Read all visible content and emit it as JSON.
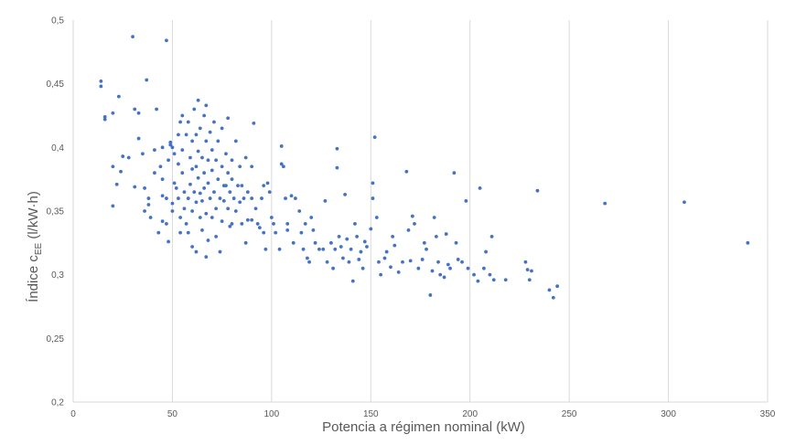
{
  "chart_data": {
    "type": "scatter",
    "xlabel": "Potencia a régimen nominal (kW)",
    "ylabel_main": "Índice c",
    "ylabel_sub": "EE",
    "ylabel_unit": " (l/kW·h)",
    "xlim": [
      0,
      350
    ],
    "ylim": [
      0.2,
      0.5
    ],
    "x_ticks": [
      0,
      50,
      100,
      150,
      200,
      250,
      300,
      350
    ],
    "y_ticks": [
      0.2,
      0.25,
      0.3,
      0.35,
      0.4,
      0.45,
      0.5
    ],
    "x_tick_labels": [
      "0",
      "50",
      "100",
      "150",
      "200",
      "250",
      "300",
      "350"
    ],
    "y_tick_labels": [
      "0,2",
      "0,25",
      "0,3",
      "0,35",
      "0,4",
      "0,45",
      "0,5"
    ],
    "grid": "vertical",
    "legend": "none",
    "marker_color": "#4472c4",
    "points": [
      [
        14,
        0.452
      ],
      [
        14,
        0.448
      ],
      [
        16,
        0.424
      ],
      [
        16,
        0.422
      ],
      [
        20,
        0.427
      ],
      [
        20,
        0.385
      ],
      [
        20,
        0.354
      ],
      [
        23,
        0.44
      ],
      [
        22,
        0.371
      ],
      [
        24,
        0.381
      ],
      [
        25,
        0.393
      ],
      [
        28,
        0.392
      ],
      [
        30,
        0.487
      ],
      [
        31,
        0.43
      ],
      [
        31,
        0.369
      ],
      [
        33,
        0.407
      ],
      [
        33,
        0.427
      ],
      [
        35,
        0.395
      ],
      [
        36,
        0.368
      ],
      [
        37,
        0.453
      ],
      [
        36,
        0.35
      ],
      [
        38,
        0.36
      ],
      [
        38,
        0.355
      ],
      [
        39,
        0.345
      ],
      [
        41,
        0.38
      ],
      [
        41,
        0.398
      ],
      [
        42,
        0.43
      ],
      [
        43,
        0.333
      ],
      [
        44,
        0.385
      ],
      [
        45,
        0.375
      ],
      [
        45,
        0.362
      ],
      [
        45,
        0.342
      ],
      [
        45,
        0.4
      ],
      [
        47,
        0.484
      ],
      [
        47,
        0.34
      ],
      [
        47,
        0.36
      ],
      [
        48,
        0.326
      ],
      [
        48,
        0.39
      ],
      [
        49,
        0.404
      ],
      [
        49,
        0.402
      ],
      [
        50,
        0.4
      ],
      [
        50,
        0.356
      ],
      [
        50,
        0.35
      ],
      [
        51,
        0.395
      ],
      [
        51,
        0.372
      ],
      [
        52,
        0.368
      ],
      [
        53,
        0.41
      ],
      [
        53,
        0.387
      ],
      [
        53,
        0.36
      ],
      [
        54,
        0.42
      ],
      [
        54,
        0.345
      ],
      [
        54,
        0.333
      ],
      [
        55,
        0.425
      ],
      [
        55,
        0.398
      ],
      [
        55,
        0.38
      ],
      [
        56,
        0.365
      ],
      [
        56,
        0.352
      ],
      [
        57,
        0.41
      ],
      [
        57,
        0.34
      ],
      [
        58,
        0.42
      ],
      [
        58,
        0.36
      ],
      [
        58,
        0.333
      ],
      [
        59,
        0.392
      ],
      [
        59,
        0.371
      ],
      [
        60,
        0.405
      ],
      [
        60,
        0.383
      ],
      [
        60,
        0.35
      ],
      [
        60,
        0.322
      ],
      [
        61,
        0.43
      ],
      [
        61,
        0.365
      ],
      [
        62,
        0.41
      ],
      [
        62,
        0.385
      ],
      [
        62,
        0.357
      ],
      [
        62,
        0.318
      ],
      [
        63,
        0.437
      ],
      [
        63,
        0.397
      ],
      [
        63,
        0.376
      ],
      [
        64,
        0.415
      ],
      [
        64,
        0.364
      ],
      [
        64,
        0.345
      ],
      [
        65,
        0.392
      ],
      [
        65,
        0.358
      ],
      [
        65,
        0.335
      ],
      [
        66,
        0.425
      ],
      [
        66,
        0.38
      ],
      [
        66,
        0.368
      ],
      [
        67,
        0.433
      ],
      [
        67,
        0.405
      ],
      [
        67,
        0.348
      ],
      [
        67,
        0.314
      ],
      [
        68,
        0.39
      ],
      [
        68,
        0.372
      ],
      [
        68,
        0.327
      ],
      [
        69,
        0.412
      ],
      [
        69,
        0.36
      ],
      [
        70,
        0.398
      ],
      [
        70,
        0.382
      ],
      [
        70,
        0.345
      ],
      [
        71,
        0.42
      ],
      [
        71,
        0.365
      ],
      [
        72,
        0.39
      ],
      [
        72,
        0.352
      ],
      [
        72,
        0.33
      ],
      [
        73,
        0.375
      ],
      [
        73,
        0.405
      ],
      [
        74,
        0.36
      ],
      [
        74,
        0.318
      ],
      [
        75,
        0.415
      ],
      [
        75,
        0.385
      ],
      [
        75,
        0.342
      ],
      [
        76,
        0.37
      ],
      [
        76,
        0.358
      ],
      [
        77,
        0.395
      ],
      [
        77,
        0.37
      ],
      [
        78,
        0.423
      ],
      [
        78,
        0.38
      ],
      [
        78,
        0.352
      ],
      [
        79,
        0.365
      ],
      [
        79,
        0.338
      ],
      [
        80,
        0.39
      ],
      [
        80,
        0.375
      ],
      [
        80,
        0.34
      ],
      [
        81,
        0.36
      ],
      [
        82,
        0.405
      ],
      [
        82,
        0.35
      ],
      [
        83,
        0.37
      ],
      [
        84,
        0.385
      ],
      [
        84,
        0.357
      ],
      [
        85,
        0.37
      ],
      [
        85,
        0.34
      ],
      [
        86,
        0.36
      ],
      [
        87,
        0.392
      ],
      [
        87,
        0.325
      ],
      [
        88,
        0.365
      ],
      [
        88,
        0.343
      ],
      [
        90,
        0.385
      ],
      [
        90,
        0.36
      ],
      [
        90,
        0.343
      ],
      [
        91,
        0.419
      ],
      [
        92,
        0.352
      ],
      [
        93,
        0.34
      ],
      [
        94,
        0.337
      ],
      [
        95,
        0.36
      ],
      [
        96,
        0.37
      ],
      [
        96,
        0.333
      ],
      [
        97,
        0.32
      ],
      [
        98,
        0.372
      ],
      [
        99,
        0.365
      ],
      [
        100,
        0.345
      ],
      [
        101,
        0.34
      ],
      [
        102,
        0.333
      ],
      [
        104,
        0.32
      ],
      [
        105,
        0.401
      ],
      [
        105,
        0.387
      ],
      [
        106,
        0.385
      ],
      [
        107,
        0.36
      ],
      [
        108,
        0.34
      ],
      [
        108,
        0.335
      ],
      [
        110,
        0.362
      ],
      [
        111,
        0.325
      ],
      [
        112,
        0.36
      ],
      [
        114,
        0.35
      ],
      [
        115,
        0.333
      ],
      [
        116,
        0.32
      ],
      [
        117,
        0.34
      ],
      [
        118,
        0.313
      ],
      [
        119,
        0.31
      ],
      [
        120,
        0.345
      ],
      [
        121,
        0.335
      ],
      [
        122,
        0.325
      ],
      [
        124,
        0.32
      ],
      [
        126,
        0.32
      ],
      [
        127,
        0.358
      ],
      [
        128,
        0.31
      ],
      [
        130,
        0.325
      ],
      [
        131,
        0.305
      ],
      [
        132,
        0.32
      ],
      [
        133,
        0.399
      ],
      [
        133,
        0.384
      ],
      [
        134,
        0.33
      ],
      [
        135,
        0.322
      ],
      [
        136,
        0.313
      ],
      [
        137,
        0.363
      ],
      [
        138,
        0.328
      ],
      [
        139,
        0.31
      ],
      [
        140,
        0.32
      ],
      [
        141,
        0.295
      ],
      [
        142,
        0.34
      ],
      [
        143,
        0.33
      ],
      [
        144,
        0.312
      ],
      [
        145,
        0.318
      ],
      [
        146,
        0.305
      ],
      [
        147,
        0.326
      ],
      [
        148,
        0.322
      ],
      [
        150,
        0.336
      ],
      [
        151,
        0.372
      ],
      [
        151,
        0.36
      ],
      [
        152,
        0.408
      ],
      [
        153,
        0.345
      ],
      [
        154,
        0.31
      ],
      [
        155,
        0.3
      ],
      [
        157,
        0.313
      ],
      [
        158,
        0.318
      ],
      [
        160,
        0.306
      ],
      [
        161,
        0.33
      ],
      [
        162,
        0.323
      ],
      [
        164,
        0.302
      ],
      [
        166,
        0.31
      ],
      [
        168,
        0.381
      ],
      [
        169,
        0.335
      ],
      [
        170,
        0.311
      ],
      [
        171,
        0.346
      ],
      [
        172,
        0.34
      ],
      [
        174,
        0.305
      ],
      [
        176,
        0.312
      ],
      [
        177,
        0.325
      ],
      [
        178,
        0.32
      ],
      [
        180,
        0.284
      ],
      [
        181,
        0.303
      ],
      [
        182,
        0.345
      ],
      [
        183,
        0.33
      ],
      [
        184,
        0.31
      ],
      [
        185,
        0.3
      ],
      [
        187,
        0.298
      ],
      [
        188,
        0.332
      ],
      [
        189,
        0.308
      ],
      [
        190,
        0.305
      ],
      [
        192,
        0.38
      ],
      [
        193,
        0.325
      ],
      [
        194,
        0.312
      ],
      [
        196,
        0.31
      ],
      [
        198,
        0.358
      ],
      [
        199,
        0.305
      ],
      [
        202,
        0.3
      ],
      [
        204,
        0.295
      ],
      [
        205,
        0.368
      ],
      [
        207,
        0.305
      ],
      [
        208,
        0.318
      ],
      [
        210,
        0.3
      ],
      [
        211,
        0.33
      ],
      [
        212,
        0.296
      ],
      [
        218,
        0.296
      ],
      [
        228,
        0.31
      ],
      [
        229,
        0.304
      ],
      [
        230,
        0.296
      ],
      [
        231,
        0.303
      ],
      [
        234,
        0.366
      ],
      [
        240,
        0.288
      ],
      [
        242,
        0.282
      ],
      [
        244,
        0.291
      ],
      [
        268,
        0.356
      ],
      [
        308,
        0.357
      ],
      [
        340,
        0.325
      ]
    ]
  }
}
